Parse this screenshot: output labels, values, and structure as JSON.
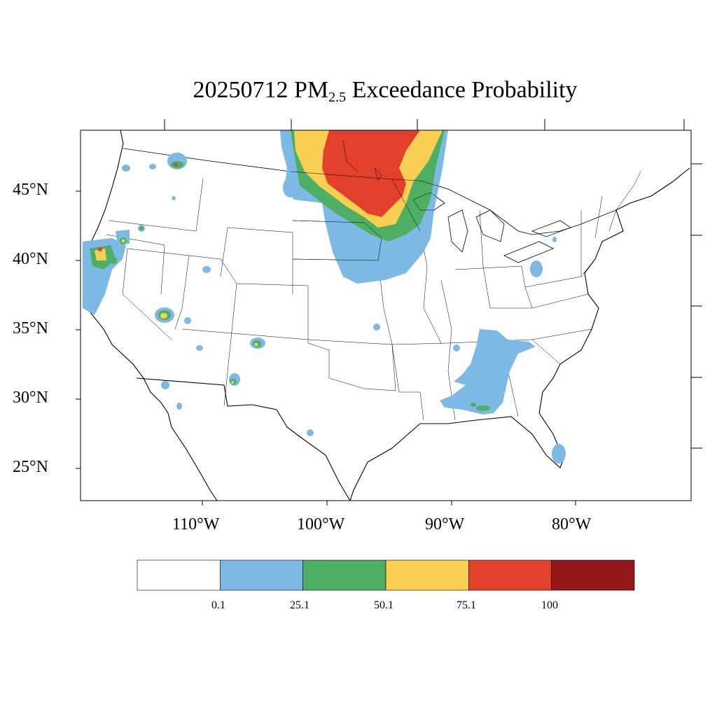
{
  "title": {
    "prefix": "20250712 PM",
    "subscript": "2.5",
    "suffix": " Exceedance Probability"
  },
  "map": {
    "lat_labels": [
      "45°N",
      "40°N",
      "35°N",
      "30°N",
      "25°N"
    ],
    "lon_labels": [
      "110°W",
      "100°W",
      "90°W",
      "80°W"
    ]
  },
  "colorbar": {
    "colors": [
      "#ffffff",
      "#7cb9e5",
      "#4caf64",
      "#f9cf52",
      "#e2402a",
      "#931719"
    ],
    "labels": [
      "0.1",
      "25.1",
      "50.1",
      "75.1",
      "100"
    ]
  }
}
